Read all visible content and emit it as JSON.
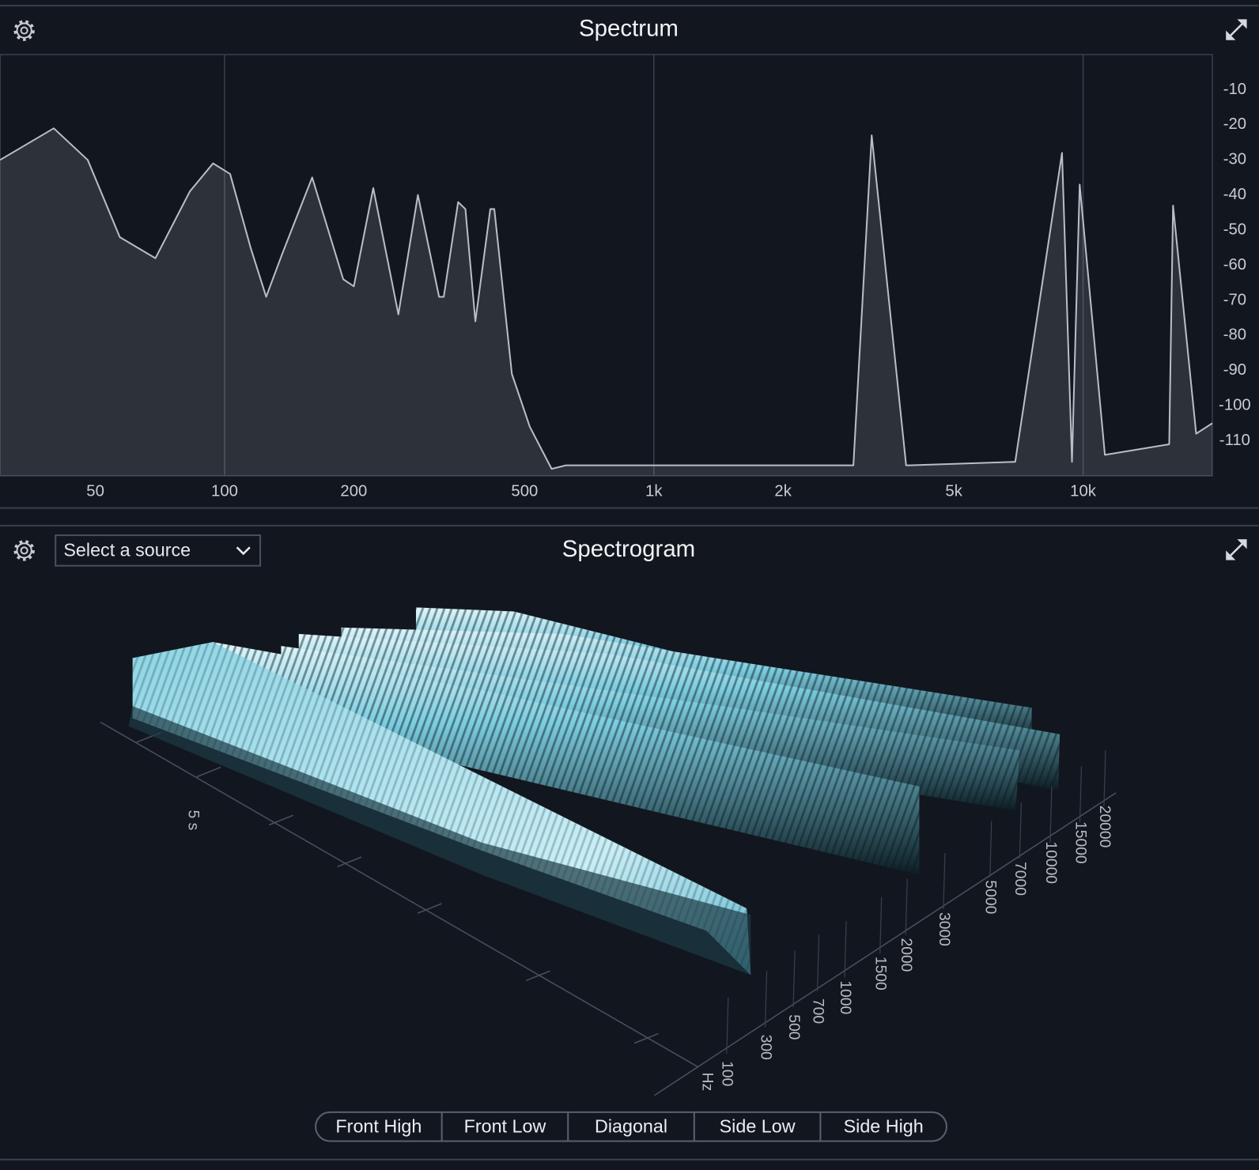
{
  "chart_data": {
    "type": "line",
    "title": "Spectrum",
    "xscale": "log",
    "grid": true,
    "x": [
      30,
      40,
      48,
      57,
      69,
      83,
      94,
      103,
      115,
      125,
      136,
      160,
      189,
      200,
      222,
      254,
      282,
      316,
      324,
      350,
      364,
      384,
      416,
      425,
      467,
      514,
      578,
      624,
      702,
      1000,
      2000,
      2917,
      3218,
      3870,
      3940,
      6950,
      8930,
      9420,
      9820,
      11240,
      15870,
      16200,
      18340,
      20000
    ],
    "series": [
      {
        "color": "#b9bdc5",
        "values": [
          -30,
          -21,
          -30,
          -52,
          -58,
          -39,
          -31,
          -34,
          -55,
          -69,
          -57,
          -35,
          -64,
          -66,
          -38,
          -74,
          -40,
          -69,
          -69,
          -42,
          -44,
          -76,
          -44,
          -44,
          -91,
          -106,
          -118,
          -117,
          -117,
          -117,
          -117,
          -117,
          -23,
          -117,
          -117,
          -116,
          -28,
          -116,
          -37,
          -114,
          -111,
          -43,
          -108,
          -105
        ]
      }
    ],
    "xlim": [
      30,
      20000
    ],
    "xticks": [
      50,
      100,
      200,
      500,
      {
        "value": 1000,
        "label": "1k"
      },
      {
        "value": 2000,
        "label": "2k"
      },
      {
        "value": 5000,
        "label": "5k"
      },
      {
        "value": 10000,
        "label": "10k"
      }
    ],
    "ylim": [
      -120,
      0
    ],
    "yticks": [
      -10,
      -20,
      -30,
      -40,
      -50,
      -60,
      -70,
      -80,
      -90,
      -100,
      -110
    ]
  },
  "spectrogram_panel": {
    "title": "Spectrogram",
    "source_select": "Select a source",
    "time_label": "5 s",
    "freq_unit": "Hz",
    "freq_labels": [
      100,
      300,
      500,
      700,
      1000,
      1500,
      2000,
      3000,
      5000,
      7000,
      10000,
      15000,
      20000
    ],
    "view_buttons": [
      "Front High",
      "Front Low",
      "Diagonal",
      "Side Low",
      "Side High"
    ]
  }
}
